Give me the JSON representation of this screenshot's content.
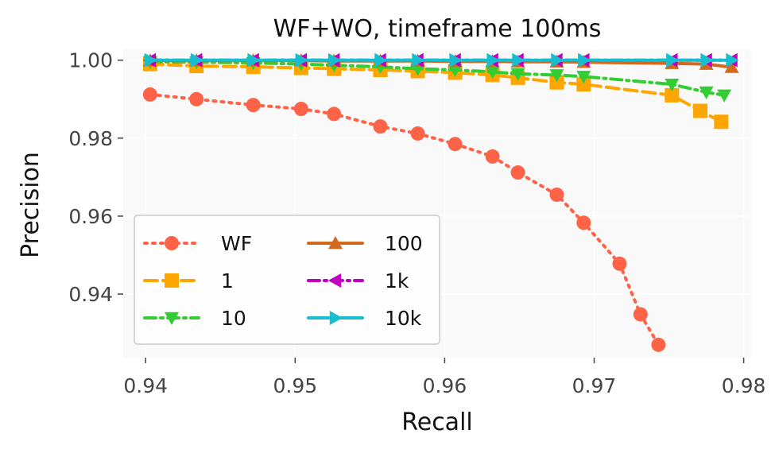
{
  "chart_data": {
    "type": "line",
    "title": "WF+WO, timeframe 100ms",
    "xlabel": "Recall",
    "ylabel": "Precision",
    "xlim": [
      0.9385,
      0.9805
    ],
    "ylim": [
      0.9237,
      1.0028
    ],
    "xticks": [
      0.94,
      0.95,
      0.96,
      0.97,
      0.98
    ],
    "xtick_labels": [
      "0.94",
      "0.95",
      "0.96",
      "0.97",
      "0.98"
    ],
    "yticks": [
      0.94,
      0.96,
      0.98,
      1.0
    ],
    "ytick_labels": [
      "0.94",
      "0.96",
      "0.98",
      "1.00"
    ],
    "grid": true,
    "legend_position": "lower-left",
    "legend_columns": 2,
    "series": [
      {
        "name": "WF",
        "color": "#ff6347",
        "marker": "circle",
        "linestyle": "dotted",
        "x": [
          0.9403,
          0.9434,
          0.9472,
          0.9504,
          0.9526,
          0.9557,
          0.9582,
          0.9607,
          0.9632,
          0.9649,
          0.9675,
          0.9693,
          0.9717,
          0.9731,
          0.9743
        ],
        "y": [
          0.9912,
          0.99,
          0.9885,
          0.9875,
          0.9862,
          0.983,
          0.9812,
          0.9785,
          0.9753,
          0.9712,
          0.9655,
          0.9583,
          0.9478,
          0.9348,
          0.927
        ]
      },
      {
        "name": "1",
        "color": "#ffa500",
        "marker": "square",
        "linestyle": "dashed",
        "x": [
          0.9403,
          0.9434,
          0.9472,
          0.9504,
          0.9526,
          0.9557,
          0.9582,
          0.9607,
          0.9632,
          0.9649,
          0.9675,
          0.9693,
          0.9752,
          0.9771,
          0.9785
        ],
        "y": [
          0.999,
          0.9985,
          0.9983,
          0.998,
          0.9978,
          0.9975,
          0.9972,
          0.9968,
          0.9962,
          0.9955,
          0.9943,
          0.9938,
          0.991,
          0.987,
          0.9842
        ]
      },
      {
        "name": "10",
        "color": "#32cd32",
        "marker": "triangle-down",
        "linestyle": "dashdot",
        "x": [
          0.9403,
          0.9434,
          0.9472,
          0.9504,
          0.9526,
          0.9557,
          0.9582,
          0.9607,
          0.9632,
          0.9649,
          0.9675,
          0.9693,
          0.9752,
          0.9775,
          0.9787
        ],
        "y": [
          0.9996,
          0.9995,
          0.9993,
          0.999,
          0.9987,
          0.9983,
          0.9978,
          0.9975,
          0.997,
          0.9965,
          0.9962,
          0.9958,
          0.9938,
          0.9918,
          0.991
        ]
      },
      {
        "name": "100",
        "color": "#d2691e",
        "marker": "triangle-up",
        "linestyle": "solid",
        "x": [
          0.9403,
          0.9434,
          0.9472,
          0.9504,
          0.9526,
          0.9557,
          0.9582,
          0.9607,
          0.9632,
          0.9649,
          0.9675,
          0.9693,
          0.9752,
          0.9775,
          0.9792
        ],
        "y": [
          0.9999,
          0.9999,
          0.9999,
          0.9999,
          0.9998,
          0.9998,
          0.9998,
          0.9997,
          0.9997,
          0.9996,
          0.9996,
          0.9995,
          0.9992,
          0.999,
          0.9982
        ]
      },
      {
        "name": "1k",
        "color": "#c000c0",
        "marker": "triangle-left",
        "linestyle": "dashdot",
        "x": [
          0.9403,
          0.9434,
          0.9472,
          0.9504,
          0.9526,
          0.9557,
          0.9582,
          0.9607,
          0.9632,
          0.9649,
          0.9675,
          0.9693,
          0.9752,
          0.9775,
          0.9792
        ],
        "y": [
          1.0,
          1.0,
          1.0,
          1.0,
          1.0,
          1.0,
          1.0,
          1.0,
          1.0,
          1.0,
          1.0,
          1.0,
          1.0,
          1.0,
          1.0
        ]
      },
      {
        "name": "10k",
        "color": "#17becf",
        "marker": "triangle-right",
        "linestyle": "solid",
        "x": [
          0.9403,
          0.9434,
          0.9472,
          0.9504,
          0.9526,
          0.9557,
          0.9582,
          0.9607,
          0.9632,
          0.9649,
          0.9675,
          0.9693,
          0.9752,
          0.9775,
          0.9792
        ],
        "y": [
          1.0,
          1.0,
          1.0,
          1.0,
          1.0,
          1.0,
          1.0,
          1.0,
          1.0,
          1.0,
          1.0,
          1.0,
          1.0,
          1.0,
          1.0
        ]
      }
    ]
  }
}
